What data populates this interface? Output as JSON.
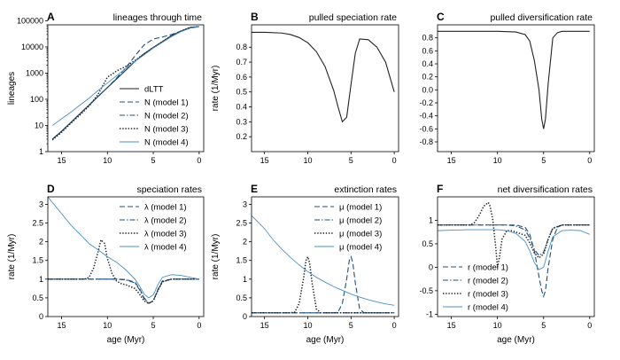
{
  "palette": {
    "black": "#222222",
    "dark_blue": "#1f4e79",
    "light_blue": "#4a90c4"
  },
  "chart_data": [
    {
      "id": "A",
      "title": "lineages through time",
      "type": "line",
      "xlabel": "",
      "ylabel": "lineages",
      "xlim": [
        16.5,
        -0.5
      ],
      "ylim": [
        1,
        70000
      ],
      "yscale": "log",
      "xticks": [
        15,
        10,
        5,
        0
      ],
      "yticks": [
        1,
        10,
        100,
        1000,
        10000,
        100000
      ],
      "legend": {
        "position": "bottom-right",
        "entries": [
          "dLTT",
          "N (model 1)",
          "N (model 2)",
          "N (model 3)",
          "N (model 4)"
        ]
      },
      "series": [
        {
          "name": "dLTT",
          "style": "solid",
          "color": "black",
          "x": [
            16,
            15,
            14,
            13,
            12,
            11,
            10,
            9,
            8,
            7,
            6,
            5,
            4,
            3,
            2,
            1,
            0
          ],
          "y": [
            3,
            6,
            13,
            28,
            60,
            130,
            280,
            600,
            1300,
            2800,
            5500,
            9500,
            16000,
            27000,
            40000,
            55000,
            60000
          ]
        },
        {
          "name": "N (model 1)",
          "style": "dashed",
          "color": "dark_blue",
          "x": [
            16,
            15,
            14,
            13,
            12,
            11,
            10,
            9,
            8,
            7,
            6,
            5,
            4,
            3,
            2,
            1,
            0
          ],
          "y": [
            3,
            6,
            13,
            28,
            60,
            130,
            280,
            650,
            1600,
            4500,
            12000,
            20000,
            24000,
            30000,
            40000,
            52000,
            60000
          ]
        },
        {
          "name": "N (model 2)",
          "style": "dashdot",
          "color": "dark_blue",
          "x": [
            16,
            15,
            14,
            13,
            12,
            11,
            10,
            9,
            8,
            7,
            6,
            5,
            4,
            3,
            2,
            1,
            0
          ],
          "y": [
            3,
            6,
            13,
            28,
            60,
            130,
            280,
            600,
            1300,
            2800,
            5500,
            9500,
            16000,
            27000,
            40000,
            55000,
            60000
          ]
        },
        {
          "name": "N (model 3)",
          "style": "dotted",
          "color": "black",
          "x": [
            16,
            15,
            14,
            13,
            12,
            11,
            10,
            9,
            8,
            7,
            6,
            5,
            4,
            3,
            2,
            1,
            0
          ],
          "y": [
            2.8,
            5.5,
            12,
            25,
            55,
            160,
            700,
            1200,
            1800,
            3000,
            5500,
            9500,
            16000,
            27000,
            40000,
            55000,
            60000
          ]
        },
        {
          "name": "N (model 4)",
          "style": "solid",
          "color": "light_blue",
          "x": [
            16,
            15,
            14,
            13,
            12,
            11,
            10,
            9,
            8,
            7,
            6,
            5,
            4,
            3,
            2,
            1,
            0
          ],
          "y": [
            10,
            18,
            32,
            60,
            110,
            220,
            420,
            800,
            1500,
            2800,
            5000,
            9000,
            15000,
            25000,
            38000,
            52000,
            60000
          ]
        }
      ]
    },
    {
      "id": "B",
      "title": "pulled speciation rate",
      "type": "line",
      "xlabel": "",
      "ylabel": "rate (1/Myr)",
      "xlim": [
        16.5,
        -0.5
      ],
      "ylim": [
        0.1,
        0.95
      ],
      "xticks": [
        15,
        10,
        5,
        0
      ],
      "yticks": [
        0.2,
        0.3,
        0.4,
        0.5,
        0.6,
        0.7,
        0.8
      ],
      "series": [
        {
          "name": "",
          "style": "solid",
          "color": "black",
          "x": [
            16.5,
            15,
            13,
            12,
            11,
            10,
            9,
            8,
            7,
            6.5,
            6,
            5.5,
            5,
            4.5,
            4,
            3,
            2,
            1,
            0
          ],
          "y": [
            0.9,
            0.9,
            0.895,
            0.885,
            0.865,
            0.83,
            0.77,
            0.67,
            0.51,
            0.4,
            0.3,
            0.33,
            0.55,
            0.76,
            0.855,
            0.85,
            0.8,
            0.7,
            0.5
          ]
        }
      ]
    },
    {
      "id": "C",
      "title": "pulled diversification rate",
      "type": "line",
      "xlabel": "",
      "ylabel": "",
      "xlim": [
        16.5,
        -0.5
      ],
      "ylim": [
        -0.95,
        1.0
      ],
      "xticks": [
        15,
        10,
        5,
        0
      ],
      "yticks": [
        -0.8,
        -0.6,
        -0.4,
        -0.2,
        0.0,
        0.2,
        0.4,
        0.6,
        0.8
      ],
      "series": [
        {
          "name": "",
          "style": "solid",
          "color": "black",
          "x": [
            16.5,
            10,
            8,
            7,
            6.5,
            6,
            5.5,
            5.2,
            5,
            4.8,
            4.5,
            4,
            3.5,
            3,
            0
          ],
          "y": [
            0.9,
            0.9,
            0.89,
            0.85,
            0.75,
            0.45,
            0.0,
            -0.45,
            -0.6,
            -0.45,
            0.1,
            0.8,
            0.88,
            0.9,
            0.9
          ]
        }
      ]
    },
    {
      "id": "D",
      "title": "speciation rates",
      "type": "line",
      "xlabel": "age (Myr)",
      "ylabel": "rate (1/Myr)",
      "xlim": [
        16.5,
        -0.5
      ],
      "ylim": [
        0,
        3.2
      ],
      "xticks": [
        15,
        10,
        5,
        0
      ],
      "yticks": [
        0,
        0.5,
        1,
        1.5,
        2,
        2.5,
        3
      ],
      "legend": {
        "position": "top-right",
        "entries": [
          "λ (model 1)",
          "λ (model 2)",
          "λ (model 3)",
          "λ (model 4)"
        ]
      },
      "series": [
        {
          "name": "λ (model 1)",
          "style": "dashed",
          "color": "dark_blue",
          "x": [
            16.5,
            9,
            8,
            7,
            6.5,
            6,
            5.5,
            5,
            4.5,
            4,
            3,
            0
          ],
          "y": [
            1,
            1,
            0.99,
            0.92,
            0.75,
            0.5,
            0.36,
            0.42,
            0.72,
            0.95,
            1,
            1
          ]
        },
        {
          "name": "λ (model 2)",
          "style": "dashdot",
          "color": "dark_blue",
          "x": [
            16.5,
            9,
            8,
            7,
            6.5,
            6,
            5.5,
            5,
            4.5,
            4,
            3,
            0
          ],
          "y": [
            1,
            1,
            0.98,
            0.9,
            0.72,
            0.48,
            0.35,
            0.42,
            0.7,
            0.93,
            1,
            1
          ]
        },
        {
          "name": "λ (model 3)",
          "style": "dotted",
          "color": "black",
          "x": [
            16.5,
            12.5,
            12,
            11.5,
            11,
            10.7,
            10.3,
            10,
            9.5,
            9,
            8.5,
            8,
            7,
            6.5,
            6,
            5.5,
            5,
            4.5,
            4,
            3,
            0
          ],
          "y": [
            1,
            1,
            1.05,
            1.3,
            1.75,
            2.05,
            1.95,
            1.55,
            1.15,
            0.95,
            0.88,
            0.85,
            0.75,
            0.6,
            0.42,
            0.35,
            0.42,
            0.7,
            0.93,
            1,
            1
          ]
        },
        {
          "name": "λ (model 4)",
          "style": "solid",
          "color": "light_blue",
          "x": [
            16.5,
            15,
            14,
            13,
            12,
            11,
            10,
            9,
            8,
            7,
            6.5,
            6,
            5.5,
            5,
            4.5,
            4,
            3,
            2,
            1,
            0
          ],
          "y": [
            3.2,
            2.75,
            2.45,
            2.2,
            1.95,
            1.78,
            1.6,
            1.45,
            1.25,
            1.0,
            0.82,
            0.6,
            0.5,
            0.58,
            0.85,
            1.05,
            1.12,
            1.1,
            1.05,
            1.0
          ]
        }
      ]
    },
    {
      "id": "E",
      "title": "extinction rates",
      "type": "line",
      "xlabel": "age (Myr)",
      "ylabel": "rate (1/Myr)",
      "xlim": [
        16.5,
        -0.5
      ],
      "ylim": [
        0,
        3.2
      ],
      "xticks": [
        15,
        10,
        5,
        0
      ],
      "yticks": [
        0,
        0.5,
        1,
        1.5,
        2,
        2.5,
        3
      ],
      "legend": {
        "position": "top-right",
        "entries": [
          "μ (model 1)",
          "μ (model 2)",
          "μ (model 3)",
          "μ (model 4)"
        ]
      },
      "series": [
        {
          "name": "μ (model 1)",
          "style": "dashed",
          "color": "dark_blue",
          "x": [
            16.5,
            7,
            6.5,
            6,
            5.5,
            5.2,
            5,
            4.8,
            4.5,
            4,
            3.5,
            0
          ],
          "y": [
            0.1,
            0.1,
            0.12,
            0.35,
            1.0,
            1.5,
            1.6,
            1.45,
            0.9,
            0.2,
            0.1,
            0.1
          ]
        },
        {
          "name": "μ (model 2)",
          "style": "dashdot",
          "color": "dark_blue",
          "x": [
            16.5,
            0
          ],
          "y": [
            0.1,
            0.1
          ]
        },
        {
          "name": "μ (model 3)",
          "style": "dotted",
          "color": "black",
          "x": [
            16.5,
            12,
            11.5,
            11,
            10.5,
            10.2,
            10,
            9.8,
            9.5,
            9,
            8.5,
            8,
            0
          ],
          "y": [
            0.1,
            0.1,
            0.12,
            0.35,
            1.0,
            1.5,
            1.6,
            1.45,
            0.9,
            0.2,
            0.1,
            0.1,
            0.1
          ]
        },
        {
          "name": "μ (model 4)",
          "style": "solid",
          "color": "light_blue",
          "x": [
            16.5,
            15,
            14,
            13,
            12,
            11,
            10,
            9,
            8,
            7,
            6,
            5,
            4,
            3,
            2,
            1,
            0
          ],
          "y": [
            2.7,
            2.35,
            2.05,
            1.8,
            1.58,
            1.38,
            1.2,
            1.05,
            0.92,
            0.8,
            0.7,
            0.6,
            0.52,
            0.45,
            0.39,
            0.34,
            0.3
          ]
        }
      ]
    },
    {
      "id": "F",
      "title": "net diversification rates",
      "type": "line",
      "xlabel": "age (Myr)",
      "ylabel": "",
      "xlim": [
        16.5,
        -0.5
      ],
      "ylim": [
        -1.05,
        1.5
      ],
      "xticks": [
        15,
        10,
        5,
        0
      ],
      "yticks": [
        -1,
        -0.5,
        0,
        0.5,
        1
      ],
      "legend": {
        "position": "bottom-left",
        "entries": [
          "r (model 1)",
          "r (model 2)",
          "r (model 3)",
          "r (model 4)"
        ]
      },
      "series": [
        {
          "name": "r (model 1)",
          "style": "dashed",
          "color": "dark_blue",
          "x": [
            16.5,
            8,
            7,
            6.5,
            6,
            5.5,
            5.2,
            5,
            4.8,
            4.5,
            4,
            3.5,
            3,
            0
          ],
          "y": [
            0.9,
            0.9,
            0.85,
            0.7,
            0.35,
            -0.2,
            -0.5,
            -0.62,
            -0.5,
            0.0,
            0.6,
            0.85,
            0.9,
            0.9
          ]
        },
        {
          "name": "r (model 2)",
          "style": "dashdot",
          "color": "dark_blue",
          "x": [
            16.5,
            9,
            8,
            7,
            6.5,
            6,
            5.5,
            5,
            4.5,
            4,
            3,
            0
          ],
          "y": [
            0.9,
            0.9,
            0.88,
            0.8,
            0.62,
            0.38,
            0.25,
            0.32,
            0.6,
            0.83,
            0.9,
            0.9
          ]
        },
        {
          "name": "r (model 3)",
          "style": "dotted",
          "color": "black",
          "x": [
            16.5,
            13,
            12.5,
            12,
            11.5,
            11,
            10.8,
            10.5,
            10.2,
            10,
            9.8,
            9.5,
            9,
            8.5,
            8,
            7,
            6.5,
            6,
            5.5,
            5,
            4.5,
            4,
            3,
            0
          ],
          "y": [
            0.9,
            0.9,
            0.95,
            1.1,
            1.3,
            1.38,
            1.3,
            1.0,
            0.45,
            0.0,
            0.2,
            0.6,
            0.78,
            0.78,
            0.75,
            0.68,
            0.52,
            0.3,
            0.2,
            0.28,
            0.6,
            0.83,
            0.9,
            0.9
          ]
        },
        {
          "name": "r (model 4)",
          "style": "solid",
          "color": "light_blue",
          "x": [
            16.5,
            15,
            13,
            11,
            10,
            9,
            8,
            7,
            6.5,
            6,
            5.5,
            5,
            4.5,
            4,
            3,
            2,
            1,
            0
          ],
          "y": [
            0.78,
            0.79,
            0.8,
            0.8,
            0.8,
            0.78,
            0.72,
            0.55,
            0.35,
            0.1,
            -0.05,
            0.0,
            0.35,
            0.65,
            0.78,
            0.79,
            0.78,
            0.7
          ]
        }
      ]
    }
  ]
}
